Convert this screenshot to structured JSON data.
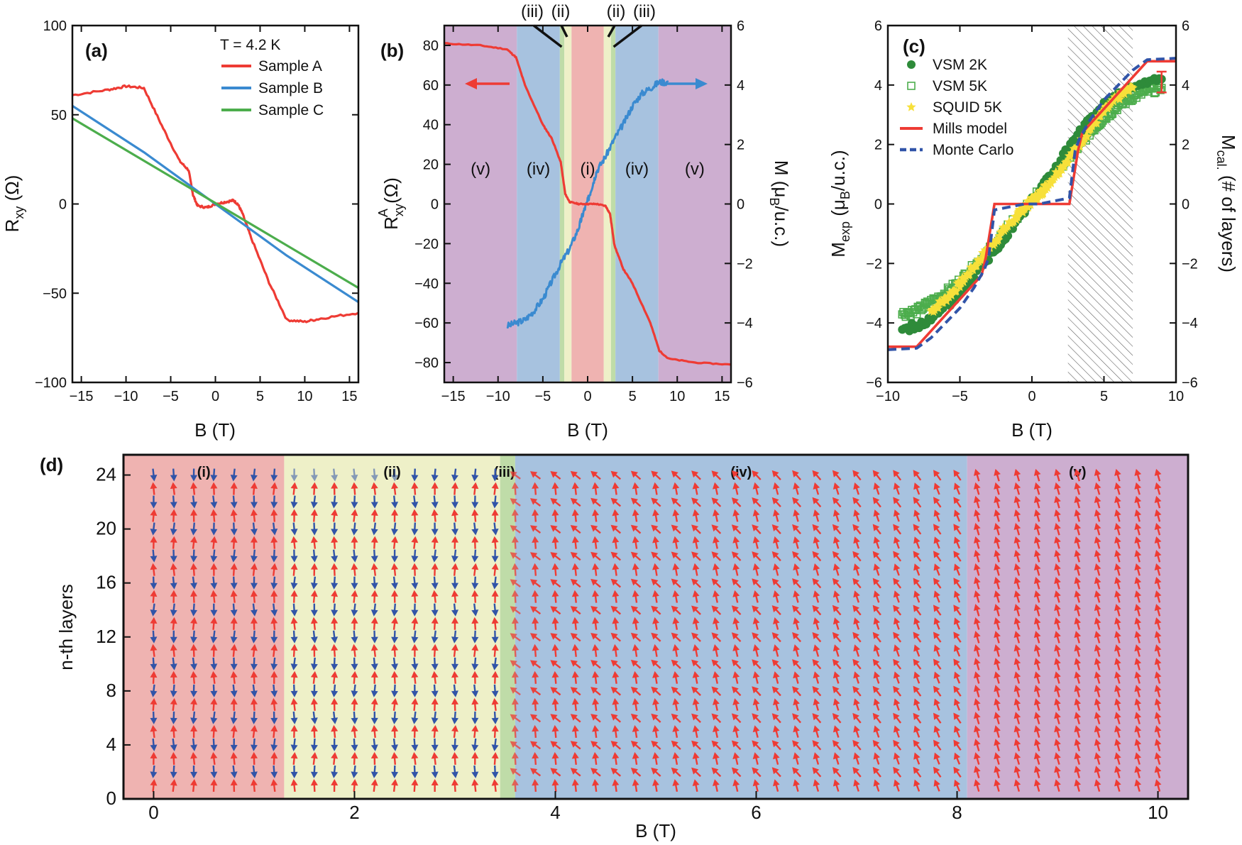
{
  "colors": {
    "red": "#ee3b34",
    "blue": "#3a8ad0",
    "green": "#4cad4c",
    "dark_green": "#2e8b3a",
    "yellow": "#f7e03a",
    "navy": "#3154a8",
    "region_i": "#efb3b1",
    "region_ii": "#eef0c8",
    "region_iii": "#bfdca8",
    "region_iv": "#a7c2df",
    "region_v": "#cdaed0"
  },
  "chart_data": [
    {
      "panel": "(a)",
      "type": "line",
      "xlabel": "B (T)",
      "ylabel": "R",
      "ylabel_sub": "xy",
      "ylabel_unit": " (Ω)",
      "xlim": [
        -16,
        16
      ],
      "ylim": [
        -100,
        100
      ],
      "xticks": [
        -15,
        -10,
        -5,
        0,
        5,
        10,
        15
      ],
      "yticks": [
        -100,
        -50,
        0,
        50,
        100
      ],
      "xtick_labels": [
        "−15",
        "−10",
        "−5",
        "0",
        "5",
        "10",
        "15"
      ],
      "ytick_labels": [
        "−100",
        "−50",
        "0",
        "50",
        "100"
      ],
      "annotation": "T = 4.2 K",
      "series": [
        {
          "name": "Sample A",
          "color": "red",
          "x": [
            -16,
            -12,
            -10,
            -8,
            -6,
            -4,
            -3,
            -2.5,
            -2,
            -1,
            0,
            1,
            2,
            2.5,
            3,
            4,
            6,
            8,
            10,
            12,
            16
          ],
          "y": [
            61,
            64,
            66,
            65,
            44,
            24,
            19,
            5,
            -1,
            -2,
            0,
            1,
            2,
            0,
            -5,
            -19,
            -44,
            -65,
            -66,
            -64,
            -61
          ]
        },
        {
          "name": "Sample B",
          "color": "blue",
          "x": [
            -16,
            -8,
            0,
            8,
            16
          ],
          "y": [
            55,
            29,
            0,
            -29,
            -55
          ]
        },
        {
          "name": "Sample C",
          "color": "green",
          "x": [
            -16,
            16
          ],
          "y": [
            48,
            -47
          ]
        }
      ]
    },
    {
      "panel": "(b)",
      "type": "line",
      "xlabel": "B (T)",
      "ylabel": "R",
      "ylabel_sub": "xy",
      "ylabel_sup": "A",
      "ylabel_unit": " (Ω)",
      "y2label": "M (μ",
      "y2label_sub": "B",
      "y2label_unit": "/u.c.)",
      "xlim": [
        -16,
        16
      ],
      "ylim": [
        -90,
        90
      ],
      "y2lim": [
        -6,
        6
      ],
      "xticks": [
        -15,
        -10,
        -5,
        0,
        5,
        10,
        15
      ],
      "yticks": [
        -80,
        -60,
        -40,
        -20,
        0,
        20,
        40,
        60,
        80
      ],
      "y2ticks": [
        -6,
        -4,
        -2,
        0,
        2,
        4,
        6
      ],
      "xtick_labels": [
        "−15",
        "−10",
        "−5",
        "0",
        "5",
        "10",
        "15"
      ],
      "ytick_labels": [
        "−80",
        "−60",
        "−40",
        "−20",
        "0",
        "20",
        "40",
        "60",
        "80"
      ],
      "y2tick_labels": [
        "−6",
        "−4",
        "−2",
        "0",
        "2",
        "4",
        "6"
      ],
      "regions": [
        {
          "label": "(v)",
          "x0": -16,
          "x1": -7.9,
          "color": "region_v"
        },
        {
          "label": "(iv)",
          "x0": -7.9,
          "x1": -3.1,
          "color": "region_iv"
        },
        {
          "label": "",
          "x0": -3.1,
          "x1": -2.6,
          "color": "region_iii"
        },
        {
          "label": "",
          "x0": -2.6,
          "x1": -1.8,
          "color": "region_ii"
        },
        {
          "label": "(i)",
          "x0": -1.8,
          "x1": 1.8,
          "color": "region_i"
        },
        {
          "label": "",
          "x0": 1.8,
          "x1": 2.6,
          "color": "region_ii"
        },
        {
          "label": "",
          "x0": 2.6,
          "x1": 3.1,
          "color": "region_iii"
        },
        {
          "label": "(iv)",
          "x0": 3.1,
          "x1": 7.9,
          "color": "region_iv"
        },
        {
          "label": "(v)",
          "x0": 7.9,
          "x1": 16,
          "color": "region_v"
        }
      ],
      "top_labels": [
        "(iii)",
        "(ii)",
        "(ii)",
        "(iii)"
      ],
      "series": [
        {
          "name": "R_xy^A",
          "axis": "left",
          "color": "red",
          "x": [
            -16,
            -12,
            -9,
            -8,
            -7,
            -5,
            -4,
            -3,
            -2.5,
            -2,
            -1,
            0,
            1,
            2,
            2.5,
            3,
            4,
            5,
            7,
            8,
            9,
            12,
            16
          ],
          "y": [
            81,
            80,
            78,
            74,
            60,
            40,
            33,
            21,
            5,
            1,
            0,
            0,
            0,
            -1,
            -5,
            -21,
            -33,
            -40,
            -60,
            -74,
            -78,
            -80,
            -81
          ]
        },
        {
          "name": "M",
          "axis": "right",
          "color": "blue",
          "x": [
            -9,
            -8,
            -7,
            -6,
            -5,
            -4,
            -3,
            -2,
            -1,
            -0.5,
            0,
            0.5,
            1,
            2,
            3,
            4,
            5,
            6,
            7,
            8,
            9
          ],
          "y": [
            -4.1,
            -4.0,
            -3.9,
            -3.6,
            -3.2,
            -2.6,
            -2.0,
            -1.5,
            -0.8,
            -0.3,
            0.1,
            0.6,
            1.1,
            1.6,
            2.2,
            2.7,
            3.3,
            3.7,
            3.9,
            4.1,
            4.1
          ]
        }
      ]
    },
    {
      "panel": "(c)",
      "type": "scatter",
      "xlabel": "B (T)",
      "ylabel": "M",
      "ylabel_sub": "exp",
      "ylabel_unit": " (μ",
      "ylabel_unit_sub": "B",
      "ylabel_unit2": "/u.c.)",
      "y2label": "M",
      "y2label_sub": "cal.",
      "y2label_unit": " (# of layers)",
      "xlim": [
        -10,
        10
      ],
      "ylim": [
        -6,
        6
      ],
      "y2lim": [
        -6,
        6
      ],
      "xticks": [
        -10,
        -5,
        0,
        5,
        10
      ],
      "yticks": [
        -6,
        -4,
        -2,
        0,
        2,
        4,
        6
      ],
      "xtick_labels": [
        "−10",
        "−5",
        "0",
        "5",
        "10"
      ],
      "ytick_labels": [
        "−6",
        "−4",
        "−2",
        "0",
        "2",
        "4",
        "6"
      ],
      "hatched_region": [
        2.5,
        7
      ],
      "series": [
        {
          "name": "VSM 2K",
          "marker": "filled-circle",
          "color": "dark_green",
          "x": [
            -9,
            -8,
            -7,
            -6,
            -5,
            -4,
            -3,
            -2,
            -1,
            0,
            1,
            2,
            3,
            4,
            5,
            6,
            7,
            8,
            9
          ],
          "y": [
            -4.2,
            -4.1,
            -3.9,
            -3.5,
            -3.0,
            -2.4,
            -1.8,
            -1.2,
            -0.5,
            0.1,
            0.8,
            1.5,
            2.2,
            2.8,
            3.3,
            3.7,
            3.9,
            4.1,
            4.2
          ]
        },
        {
          "name": "VSM 5K",
          "marker": "open-square",
          "color": "green",
          "x": [
            -9,
            -8,
            -7,
            -6,
            -5,
            -4,
            -3,
            -2,
            2,
            3,
            4,
            5,
            6,
            7,
            8,
            9
          ],
          "y": [
            -3.7,
            -3.6,
            -3.3,
            -3.0,
            -2.6,
            -2.1,
            -1.6,
            -1.0,
            1.3,
            1.8,
            2.4,
            2.9,
            3.3,
            3.6,
            3.8,
            3.9
          ]
        },
        {
          "name": "SQUID 5K",
          "marker": "star",
          "color": "yellow",
          "x": [
            -7,
            -6,
            -5,
            -4,
            -3,
            -2,
            -1,
            -0.5,
            0,
            0.5,
            1,
            2,
            3,
            4,
            5,
            6,
            7
          ],
          "y": [
            -3.6,
            -3.2,
            -2.7,
            -2.1,
            -1.5,
            -0.9,
            -0.4,
            -0.1,
            0.1,
            0.3,
            0.6,
            1.2,
            1.8,
            2.5,
            3.1,
            3.6,
            3.9
          ]
        },
        {
          "name": "Mills model",
          "type": "line",
          "color": "red",
          "x": [
            -10,
            -8,
            -3.5,
            -3.2,
            -2.6,
            2.6,
            3.2,
            3.5,
            8,
            10
          ],
          "y": [
            -4.8,
            -4.8,
            -2.4,
            -1.8,
            0,
            0,
            1.8,
            2.4,
            4.8,
            4.8
          ]
        },
        {
          "name": "Monte Carlo",
          "type": "dashed-line",
          "color": "navy",
          "x": [
            -0.5,
            0.5,
            2.6,
            2.7,
            3.0,
            3.3,
            4,
            5,
            6,
            7,
            8,
            10
          ],
          "y": [
            0,
            0,
            0.2,
            0.6,
            1.8,
            2.2,
            2.8,
            3.5,
            4.0,
            4.5,
            4.85,
            4.9
          ]
        }
      ],
      "errorbar": {
        "x": 9,
        "y": 4.1,
        "err": 0.35,
        "color": "red"
      }
    },
    {
      "panel": "(d)",
      "type": "heatmap",
      "xlabel": "B (T)",
      "ylabel": "n-th layers",
      "xlim": [
        -0.3,
        10.3
      ],
      "ylim": [
        0,
        25.5
      ],
      "xticks": [
        0,
        2,
        4,
        6,
        8,
        10
      ],
      "yticks": [
        0,
        4,
        8,
        12,
        16,
        20,
        24
      ],
      "xtick_labels": [
        "0",
        "2",
        "4",
        "6",
        "8",
        "10"
      ],
      "ytick_labels": [
        "0",
        "4",
        "8",
        "12",
        "16",
        "20",
        "24"
      ],
      "regions": [
        {
          "label": "(i)",
          "x0": -0.3,
          "x1": 1.3,
          "color": "region_i"
        },
        {
          "label": "(ii)",
          "x0": 1.3,
          "x1": 3.45,
          "color": "region_ii"
        },
        {
          "label": "(iii)",
          "x0": 3.45,
          "x1": 3.6,
          "color": "region_iii"
        },
        {
          "label": "(iv)",
          "x0": 3.6,
          "x1": 8.1,
          "color": "region_iv"
        },
        {
          "label": "(v)",
          "x0": 8.1,
          "x1": 10.3,
          "color": "region_v"
        }
      ],
      "field_step": 0.2,
      "layers": 24,
      "spin_states": [
        "antiparallel",
        "antiparallel",
        "canted",
        "canted",
        "aligned"
      ]
    }
  ]
}
